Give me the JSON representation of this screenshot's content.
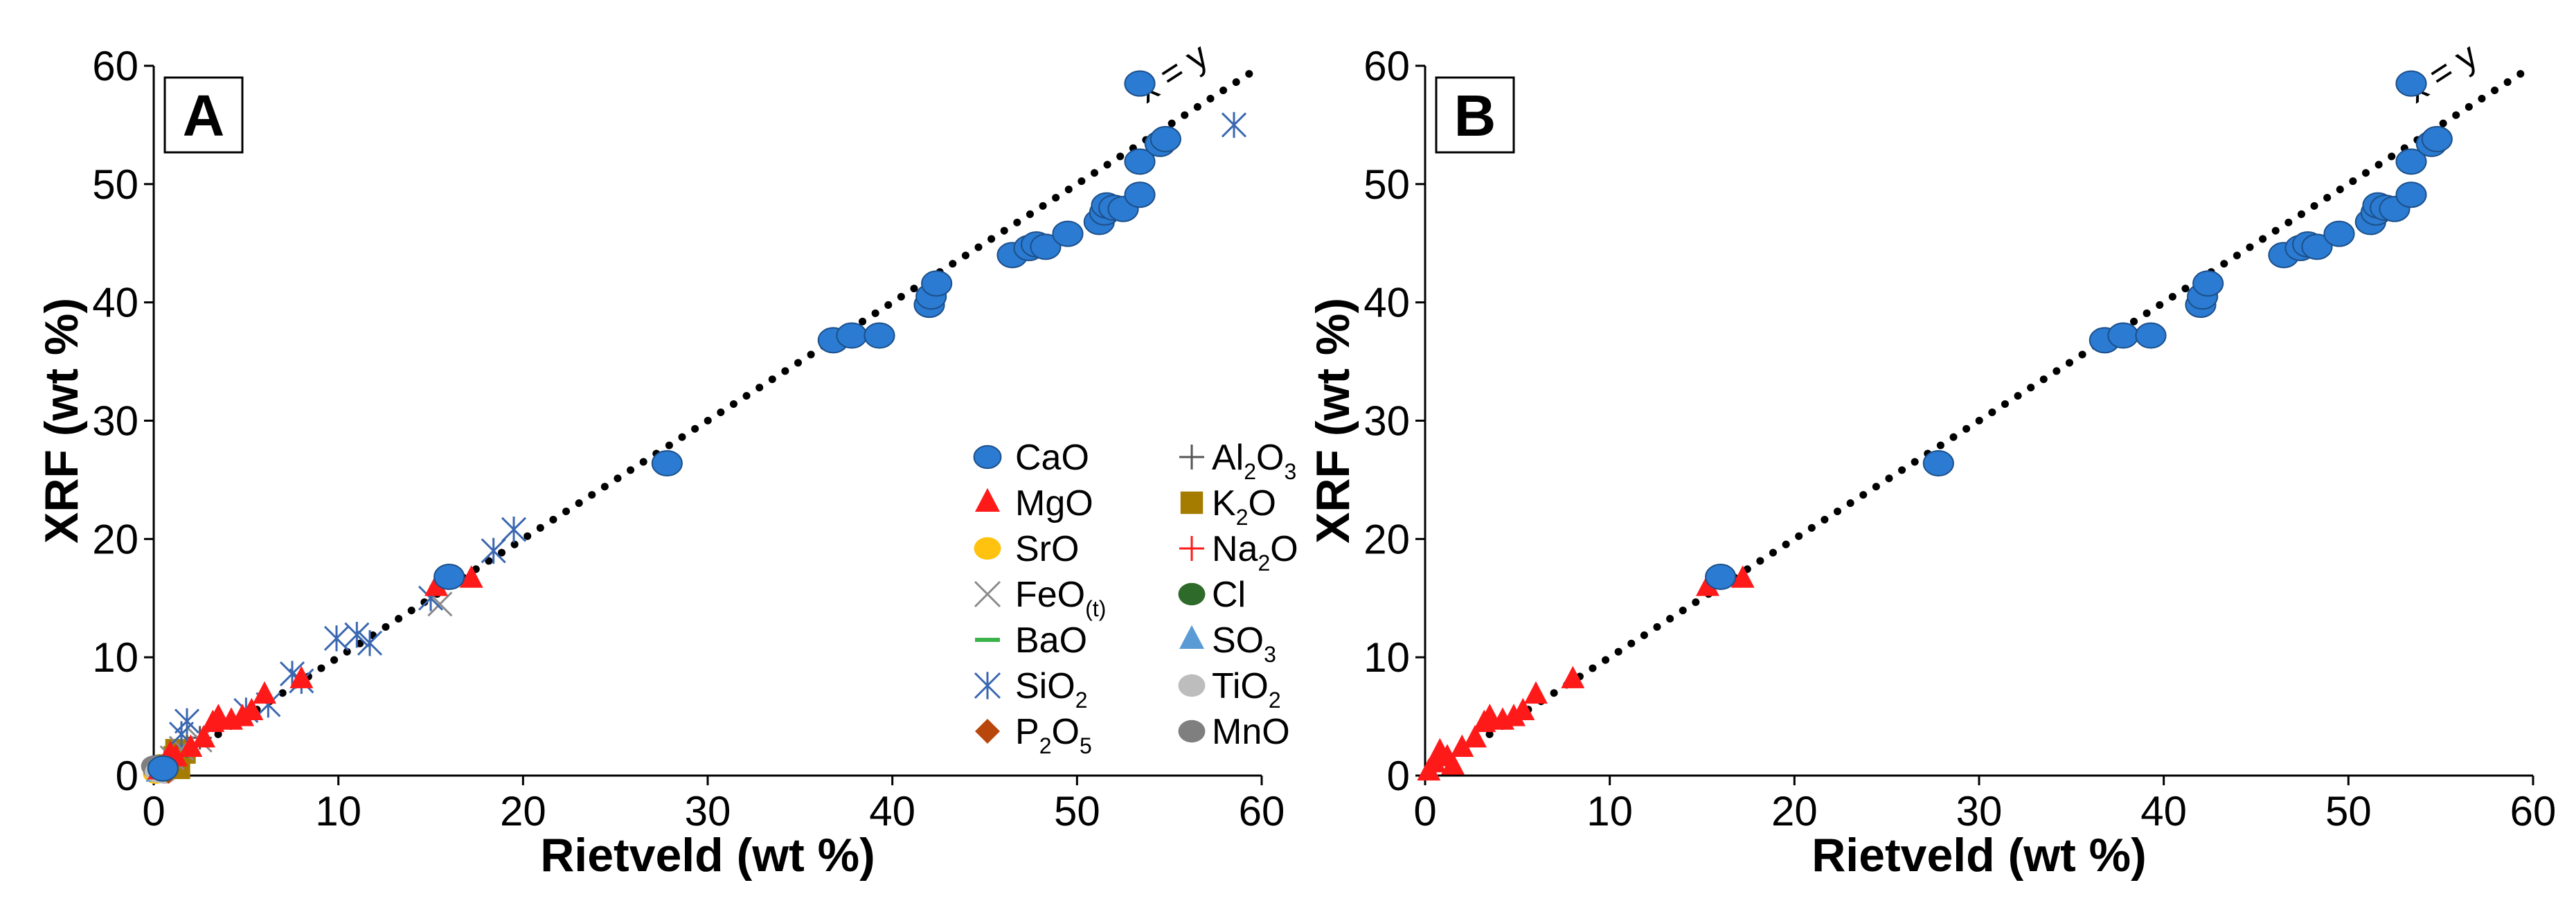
{
  "chart_data": [
    {
      "panel": "A",
      "type": "scatter",
      "xlabel": "Rietveld (wt %)",
      "ylabel": "XRF (wt %)",
      "xlim": [
        0,
        60
      ],
      "ylim": [
        0,
        60
      ],
      "x_ticks": [
        "0",
        "10",
        "20",
        "30",
        "40",
        "50",
        "60"
      ],
      "y_ticks": [
        "0",
        "10",
        "20",
        "30",
        "40",
        "50",
        "60"
      ],
      "reference_line": {
        "label": "x = y",
        "style": "dotted",
        "from": [
          0,
          0
        ],
        "to": [
          60,
          60
        ]
      },
      "legend_position": "lower-right",
      "legend": [
        {
          "label": "CaO",
          "sub": "",
          "marker": "circle",
          "color": "#2a7bd1"
        },
        {
          "label": "MgO",
          "sub": "",
          "marker": "triangle",
          "color": "#ff1a1a"
        },
        {
          "label": "SrO",
          "sub": "",
          "marker": "circle",
          "color": "#ffc20e"
        },
        {
          "label": "FeO",
          "sub": "(t)",
          "marker": "x",
          "color": "#8a8a8a"
        },
        {
          "label": "BaO",
          "sub": "",
          "marker": "dash",
          "color": "#3cb34a"
        },
        {
          "label": "SiO",
          "sub": "2",
          "marker": "asterisk",
          "color": "#3a67b0"
        },
        {
          "label": "P",
          "sub": "2",
          "suffix": "O",
          "sub2": "5",
          "marker": "diamond",
          "color": "#b9470b"
        },
        {
          "label": "Al",
          "sub": "2",
          "suffix": "O",
          "sub2": "3",
          "marker": "plus",
          "color": "#555555"
        },
        {
          "label": "K",
          "sub": "2",
          "suffix": "O",
          "marker": "square",
          "color": "#a57c00"
        },
        {
          "label": "Na",
          "sub": "2",
          "suffix": "O",
          "marker": "plus",
          "color": "#ff1a1a"
        },
        {
          "label": "Cl",
          "sub": "",
          "marker": "circle",
          "color": "#2e6b2a"
        },
        {
          "label": "SO",
          "sub": "3",
          "marker": "triangle",
          "color": "#5b9bd5"
        },
        {
          "label": "TiO",
          "sub": "2",
          "marker": "circle",
          "color": "#bdbdbd"
        },
        {
          "label": "MnO",
          "sub": "",
          "marker": "circle",
          "color": "#7f7f7f"
        }
      ],
      "series": [
        {
          "name": "CaO",
          "marker": "circle",
          "color": "#2a7bd1",
          "points": [
            [
              16.0,
              16.8
            ],
            [
              27.8,
              26.4
            ],
            [
              36.8,
              36.8
            ],
            [
              37.8,
              37.2
            ],
            [
              39.3,
              37.2
            ],
            [
              42.0,
              39.8
            ],
            [
              42.1,
              40.5
            ],
            [
              42.4,
              41.6
            ],
            [
              46.5,
              44.0
            ],
            [
              47.4,
              44.6
            ],
            [
              47.8,
              44.9
            ],
            [
              48.3,
              44.7
            ],
            [
              49.5,
              45.8
            ],
            [
              51.2,
              46.8
            ],
            [
              51.5,
              47.6
            ],
            [
              51.6,
              48.2
            ],
            [
              52.0,
              48.0
            ],
            [
              52.5,
              47.9
            ],
            [
              53.4,
              49.1
            ],
            [
              53.4,
              51.9
            ],
            [
              54.5,
              53.4
            ],
            [
              54.8,
              53.8
            ],
            [
              53.4,
              58.5
            ],
            [
              0.5,
              0.6
            ]
          ]
        },
        {
          "name": "MgO",
          "marker": "triangle",
          "color": "#ff1a1a",
          "points": [
            [
              0.3,
              0.4
            ],
            [
              0.6,
              1.0
            ],
            [
              0.9,
              1.8
            ],
            [
              1.2,
              1.5
            ],
            [
              2.0,
              2.3
            ],
            [
              2.7,
              3.1
            ],
            [
              3.2,
              4.4
            ],
            [
              3.5,
              4.9
            ],
            [
              4.2,
              4.6
            ],
            [
              4.8,
              4.9
            ],
            [
              5.3,
              5.4
            ],
            [
              6.0,
              6.8
            ],
            [
              8.0,
              8.1
            ],
            [
              15.3,
              15.9
            ],
            [
              17.2,
              16.6
            ]
          ]
        },
        {
          "name": "SiO2",
          "marker": "asterisk",
          "color": "#3a67b0",
          "points": [
            [
              1.5,
              3.5
            ],
            [
              1.8,
              4.6
            ],
            [
              5.0,
              5.5
            ],
            [
              6.2,
              6.0
            ],
            [
              7.5,
              8.6
            ],
            [
              8.0,
              8.0
            ],
            [
              9.9,
              11.6
            ],
            [
              11.0,
              11.9
            ],
            [
              11.7,
              11.2
            ],
            [
              15.0,
              15.0
            ],
            [
              18.4,
              19.0
            ],
            [
              19.5,
              20.8
            ],
            [
              58.5,
              55.0
            ]
          ]
        },
        {
          "name": "FeO(t)",
          "marker": "x",
          "color": "#8a8a8a",
          "points": [
            [
              1.0,
              1.5
            ],
            [
              1.5,
              2.3
            ],
            [
              2.5,
              3.0
            ],
            [
              15.5,
              14.5
            ]
          ]
        },
        {
          "name": "Al2O3",
          "marker": "plus",
          "color": "#555555",
          "points": [
            [
              1.0,
              1.2
            ],
            [
              1.8,
              2.5
            ],
            [
              2.5,
              3.2
            ]
          ]
        },
        {
          "name": "K2O",
          "marker": "square",
          "color": "#a57c00",
          "points": [
            [
              0.8,
              0.9
            ],
            [
              1.1,
              1.6
            ],
            [
              1.4,
              0.6
            ],
            [
              1.7,
              1.9
            ],
            [
              1.2,
              2.2
            ]
          ]
        },
        {
          "name": "P2O5",
          "marker": "diamond",
          "color": "#b9470b",
          "points": [
            [
              0.3,
              0.5
            ],
            [
              0.8,
              0.3
            ]
          ]
        },
        {
          "name": "TiO2",
          "marker": "circle",
          "color": "#bdbdbd",
          "points": [
            [
              0.2,
              0.3
            ],
            [
              0.4,
              0.8
            ],
            [
              0.6,
              0.2
            ]
          ]
        },
        {
          "name": "MnO",
          "marker": "circle",
          "color": "#7f7f7f",
          "points": [
            [
              0.1,
              0.5
            ],
            [
              0.3,
              0.9
            ],
            [
              0.0,
              0.8
            ]
          ]
        },
        {
          "name": "SO3",
          "marker": "triangle",
          "color": "#5b9bd5",
          "points": [
            [
              0.2,
              0.2
            ]
          ]
        },
        {
          "name": "SrO",
          "marker": "circle",
          "color": "#ffc20e",
          "points": [
            [
              0.1,
              0.2
            ]
          ]
        }
      ]
    },
    {
      "panel": "B",
      "type": "scatter",
      "xlabel": "Rietveld (wt %)",
      "ylabel": "XRF (wt %)",
      "xlim": [
        0,
        60
      ],
      "ylim": [
        0,
        60
      ],
      "x_ticks": [
        "0",
        "10",
        "20",
        "30",
        "40",
        "50",
        "60"
      ],
      "y_ticks": [
        "0",
        "10",
        "20",
        "30",
        "40",
        "50",
        "60"
      ],
      "reference_line": {
        "label": "x = y",
        "style": "dotted",
        "from": [
          0,
          0
        ],
        "to": [
          60,
          60
        ]
      },
      "series": [
        {
          "name": "CaO",
          "marker": "circle",
          "color": "#2a7bd1",
          "points": [
            [
              16.0,
              16.8
            ],
            [
              27.8,
              26.4
            ],
            [
              36.8,
              36.8
            ],
            [
              37.8,
              37.2
            ],
            [
              39.3,
              37.2
            ],
            [
              42.0,
              39.8
            ],
            [
              42.1,
              40.5
            ],
            [
              42.4,
              41.6
            ],
            [
              46.5,
              44.0
            ],
            [
              47.4,
              44.6
            ],
            [
              47.8,
              44.9
            ],
            [
              48.3,
              44.7
            ],
            [
              49.5,
              45.8
            ],
            [
              51.2,
              46.8
            ],
            [
              51.5,
              47.6
            ],
            [
              51.6,
              48.2
            ],
            [
              52.0,
              48.0
            ],
            [
              52.5,
              47.9
            ],
            [
              53.4,
              49.1
            ],
            [
              53.4,
              51.9
            ],
            [
              54.5,
              53.4
            ],
            [
              54.8,
              53.8
            ],
            [
              53.4,
              58.5
            ]
          ]
        },
        {
          "name": "MgO",
          "marker": "triangle",
          "color": "#ff1a1a",
          "points": [
            [
              0.2,
              0.3
            ],
            [
              0.5,
              1.0
            ],
            [
              0.8,
              2.0
            ],
            [
              1.2,
              1.5
            ],
            [
              1.5,
              0.8
            ],
            [
              2.0,
              2.3
            ],
            [
              2.7,
              3.1
            ],
            [
              3.2,
              4.4
            ],
            [
              3.5,
              4.9
            ],
            [
              4.2,
              4.6
            ],
            [
              4.8,
              4.9
            ],
            [
              5.3,
              5.4
            ],
            [
              6.0,
              6.8
            ],
            [
              8.0,
              8.1
            ],
            [
              15.3,
              15.9
            ],
            [
              17.2,
              16.6
            ]
          ]
        }
      ]
    }
  ]
}
